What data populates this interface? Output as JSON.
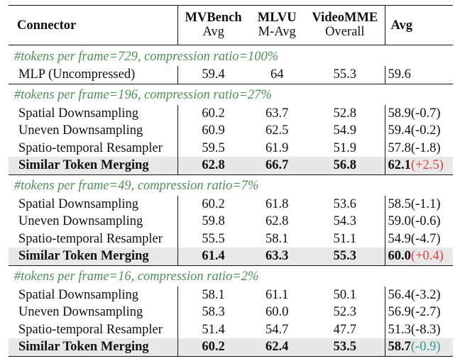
{
  "header": {
    "connector": "Connector",
    "mvbench": "MVBench",
    "mvbench_sub": "Avg",
    "mlvu": "MLVU",
    "mlvu_sub": "M-Avg",
    "videomme": "VideoMME",
    "videomme_sub": "Overall",
    "avg": "Avg"
  },
  "sections": [
    {
      "title": "#tokens per frame=729, compression ratio=100%",
      "rows": [
        {
          "name": "MLP (Uncompressed)",
          "mvbench": "59.4",
          "mlvu": "64",
          "videomme": "55.3",
          "avg": "59.6",
          "delta": ""
        }
      ]
    },
    {
      "title": "#tokens per frame=196, compression ratio=27%",
      "rows": [
        {
          "name": "Spatial Downsampling",
          "mvbench": "60.2",
          "mlvu": "63.7",
          "videomme": "52.8",
          "avg": "58.9",
          "delta": "(-0.7)"
        },
        {
          "name": "Uneven Downsampling",
          "mvbench": "60.9",
          "mlvu": "62.5",
          "videomme": "54.9",
          "avg": "59.4",
          "delta": "(-0.2)"
        },
        {
          "name": "Spatio-temporal Resampler",
          "mvbench": "59.5",
          "mlvu": "61.9",
          "videomme": "51.9",
          "avg": "57.8",
          "delta": "(-1.8)"
        },
        {
          "name": "Similar Token Merging",
          "mvbench": "62.8",
          "mlvu": "66.7",
          "videomme": "56.8",
          "avg": "62.1",
          "delta": "(+2.5)"
        }
      ]
    },
    {
      "title": "#tokens per frame=49, compression ratio=7%",
      "rows": [
        {
          "name": "Spatial Downsampling",
          "mvbench": "60.2",
          "mlvu": "61.8",
          "videomme": "53.6",
          "avg": "58.5",
          "delta": "(-1.1)"
        },
        {
          "name": "Uneven Downsampling",
          "mvbench": "59.8",
          "mlvu": "62.8",
          "videomme": "54.3",
          "avg": "59.0",
          "delta": "(-0.6)"
        },
        {
          "name": "Spatio-temporal Resampler",
          "mvbench": "55.5",
          "mlvu": "58.1",
          "videomme": "51.1",
          "avg": "54.9",
          "delta": "(-4.7)"
        },
        {
          "name": "Similar Token Merging",
          "mvbench": "61.4",
          "mlvu": "63.3",
          "videomme": "55.3",
          "avg": "60.0",
          "delta": "(+0.4)"
        }
      ]
    },
    {
      "title": "#tokens per frame=16, compression ratio=2%",
      "rows": [
        {
          "name": "Spatial Downsampling",
          "mvbench": "58.1",
          "mlvu": "61.1",
          "videomme": "50.1",
          "avg": "56.4",
          "delta": "(-3.2)"
        },
        {
          "name": "Uneven Downsampling",
          "mvbench": "58.3",
          "mlvu": "60.0",
          "videomme": "52.3",
          "avg": "56.9",
          "delta": "(-2.7)"
        },
        {
          "name": "Spatio-temporal Resampler",
          "mvbench": "51.4",
          "mlvu": "54.7",
          "videomme": "47.7",
          "avg": "51.3",
          "delta": "(-8.3)"
        },
        {
          "name": "Similar Token Merging",
          "mvbench": "60.2",
          "mlvu": "62.4",
          "videomme": "53.5",
          "avg": "58.7",
          "delta": "(-0.9)"
        }
      ]
    }
  ],
  "colors": {
    "section_title": "#4e8f5a",
    "highlight_row_bg": "#e8e8e8",
    "delta_positive": "#e0403a",
    "delta_negative_highlight": "#2f9a92"
  }
}
